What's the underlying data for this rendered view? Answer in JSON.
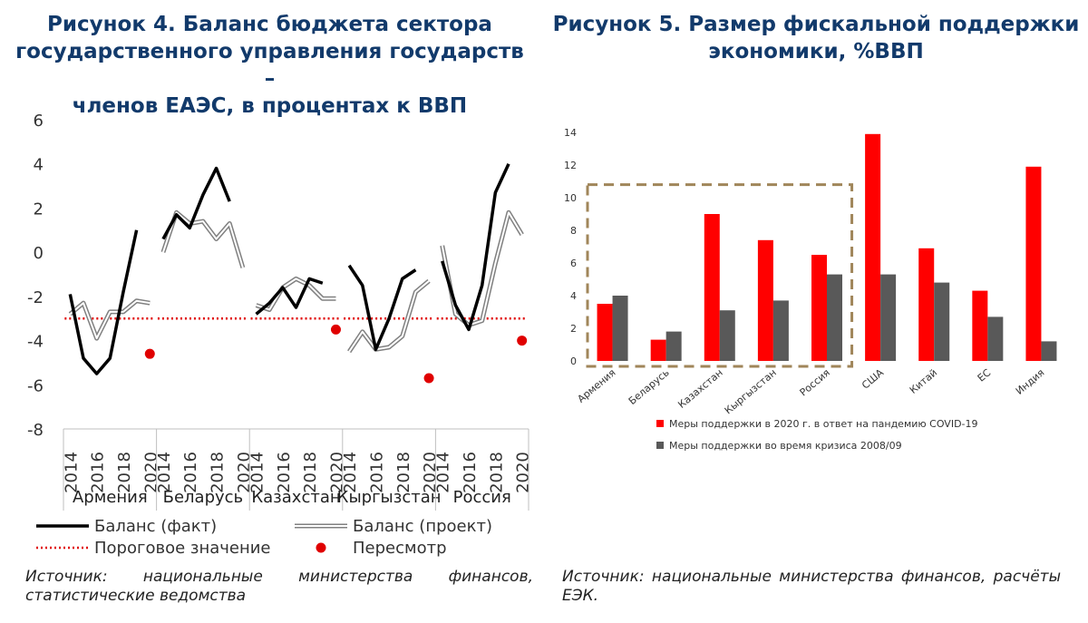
{
  "figure4": {
    "title_lines": [
      "Рисунок 4. Баланс бюджета сектора",
      "государственного управления государств –",
      "членов ЕАЭС, в процентах к ВВП"
    ],
    "source": "Источник: национальные министерства финансов, статистические ведомства"
  },
  "figure5": {
    "title_lines": [
      "Рисунок 5. Размер фискальной поддержки",
      "экономики, %ВВП"
    ],
    "source": "Источник: национальные министерства финансов, расчёты ЕЭК."
  },
  "chart_data": [
    {
      "type": "line",
      "ylim": [
        -8,
        6
      ],
      "yticks": [
        6,
        4,
        2,
        0,
        -2,
        -4,
        -6,
        -8
      ],
      "year_ticks": [
        "2014",
        "2016",
        "2018",
        "2020"
      ],
      "x": [
        2014,
        2015,
        2016,
        2017,
        2018,
        2019,
        2020
      ],
      "threshold": -3,
      "colors": {
        "fact": "#000000",
        "project": "#808080",
        "threshold": "#e00000",
        "revision": "#e00000"
      },
      "legend": {
        "fact": "Баланс (факт)",
        "project": "Баланс (проект)",
        "threshold": "Пороговое значение",
        "revision": "Пересмотр"
      },
      "groups": [
        {
          "name": "Армения",
          "fact": [
            -1.9,
            -4.8,
            -5.5,
            -4.8,
            -1.8,
            1.0,
            null
          ],
          "project": [
            -2.8,
            -2.3,
            -3.9,
            -2.7,
            -2.7,
            -2.2,
            -2.3
          ],
          "revision": [
            2020,
            -4.6
          ]
        },
        {
          "name": "Беларусь",
          "fact": [
            0.6,
            1.7,
            1.1,
            2.6,
            3.8,
            2.3,
            null
          ],
          "project": [
            0.0,
            1.8,
            1.3,
            1.4,
            0.6,
            1.3,
            -0.7
          ],
          "revision": null
        },
        {
          "name": "Казахстан",
          "fact": [
            -2.8,
            -2.3,
            -1.6,
            -2.5,
            -1.2,
            -1.4,
            null
          ],
          "project": [
            -2.4,
            -2.6,
            -1.6,
            -1.2,
            -1.5,
            -2.1,
            -2.1
          ],
          "revision": [
            2020,
            -3.5
          ]
        },
        {
          "name": "Кыргызстан",
          "fact": [
            -0.6,
            -1.5,
            -4.4,
            -3.0,
            -1.2,
            -0.8,
            null
          ],
          "project": [
            -4.5,
            -3.6,
            -4.4,
            -4.3,
            -3.8,
            -1.8,
            -1.3
          ],
          "revision": [
            2020,
            -5.7
          ]
        },
        {
          "name": "Россия",
          "fact": [
            -0.4,
            -2.4,
            -3.5,
            -1.5,
            2.7,
            4.0,
            null
          ],
          "project": [
            0.3,
            -2.8,
            -3.3,
            -3.1,
            -0.5,
            1.8,
            0.8
          ],
          "revision": [
            2020,
            -4.0
          ]
        }
      ]
    },
    {
      "type": "bar",
      "ylim": [
        0,
        14
      ],
      "yticks": [
        14,
        12,
        10,
        8,
        6,
        4,
        2,
        0
      ],
      "categories": [
        "Армения",
        "Беларусь",
        "Казахстан",
        "Кыргызстан",
        "Россия",
        "США",
        "Китай",
        "ЕС",
        "Индия"
      ],
      "series": [
        {
          "name": "Меры поддержки в 2020 г. в ответ на пандемию COVID-19",
          "color": "#ff0000",
          "values": [
            3.5,
            1.3,
            9.0,
            7.4,
            6.5,
            13.9,
            6.9,
            4.3,
            11.9
          ]
        },
        {
          "name": "Меры поддержки во время кризиса 2008/09",
          "color": "#595959",
          "values": [
            4.0,
            1.8,
            3.1,
            3.7,
            5.3,
            5.3,
            4.8,
            2.7,
            1.2
          ]
        }
      ],
      "highlight_box_color": "#a0865a"
    }
  ]
}
